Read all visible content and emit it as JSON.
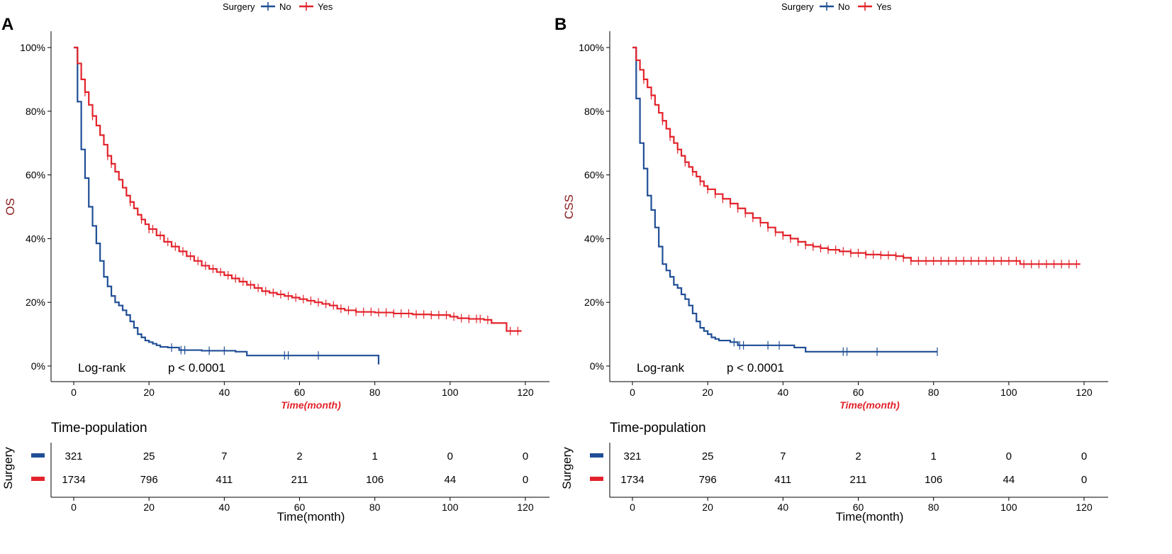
{
  "colors": {
    "no": "#1f4e96",
    "yes": "#e3232b",
    "ylabel": "#8b1a1a",
    "xlabel": "#e3232b",
    "axis": "#000000"
  },
  "chart_data": [
    {
      "type": "line",
      "panel_label": "A",
      "ylabel": "OS",
      "xlabel": "Time(month)",
      "legend": {
        "title": "Surgery",
        "entries": [
          "No",
          "Yes"
        ],
        "placement": "top"
      },
      "xlim": [
        0,
        120
      ],
      "ylim": [
        0,
        100
      ],
      "x_ticks": [
        "0",
        "20",
        "40",
        "60",
        "80",
        "100",
        "120"
      ],
      "y_ticks": [
        "0%",
        "20%",
        "40%",
        "60%",
        "80%",
        "100%"
      ],
      "annotation_label": "Log-rank",
      "annotation_p": "p < 0.0001",
      "series": [
        {
          "name": "No",
          "points": [
            [
              0,
              100
            ],
            [
              1,
              83
            ],
            [
              2,
              68
            ],
            [
              3,
              59
            ],
            [
              4,
              50
            ],
            [
              5,
              44
            ],
            [
              6,
              38.5
            ],
            [
              7,
              33
            ],
            [
              8,
              28
            ],
            [
              9,
              25
            ],
            [
              10,
              22
            ],
            [
              11,
              20
            ],
            [
              12,
              19
            ],
            [
              13,
              17.5
            ],
            [
              14,
              16
            ],
            [
              15,
              14
            ],
            [
              16,
              12
            ],
            [
              17,
              10
            ],
            [
              18,
              9
            ],
            [
              19,
              8
            ],
            [
              20,
              7.5
            ],
            [
              21,
              7
            ],
            [
              22,
              6.5
            ],
            [
              23,
              6
            ],
            [
              25,
              5.8
            ],
            [
              28,
              5
            ],
            [
              34,
              4.8
            ],
            [
              43,
              4.5
            ],
            [
              46,
              3.3
            ],
            [
              81,
              3.3
            ],
            [
              81,
              0.5
            ]
          ],
          "censor": [
            26,
            28.5,
            29.5,
            36,
            40,
            56,
            57,
            65
          ]
        },
        {
          "name": "Yes",
          "points": [
            [
              0,
              100
            ],
            [
              1,
              95
            ],
            [
              2,
              90
            ],
            [
              3,
              86
            ],
            [
              4,
              82
            ],
            [
              5,
              78.5
            ],
            [
              6,
              75.5
            ],
            [
              7,
              72.5
            ],
            [
              8,
              69.5
            ],
            [
              9,
              66
            ],
            [
              10,
              63.5
            ],
            [
              11,
              61
            ],
            [
              12,
              58.5
            ],
            [
              13,
              56
            ],
            [
              14,
              53.5
            ],
            [
              15,
              51.5
            ],
            [
              16,
              49.5
            ],
            [
              17,
              47.5
            ],
            [
              18,
              46
            ],
            [
              19,
              44.5
            ],
            [
              20,
              43
            ],
            [
              22,
              41
            ],
            [
              24,
              39
            ],
            [
              26,
              37.5
            ],
            [
              28,
              36
            ],
            [
              30,
              34.5
            ],
            [
              32,
              33
            ],
            [
              34,
              31.5
            ],
            [
              36,
              30.5
            ],
            [
              38,
              29.5
            ],
            [
              40,
              28.5
            ],
            [
              42,
              27.5
            ],
            [
              44,
              26.5
            ],
            [
              46,
              25.5
            ],
            [
              48,
              24.5
            ],
            [
              50,
              23.5
            ],
            [
              52,
              23
            ],
            [
              54,
              22.5
            ],
            [
              56,
              22
            ],
            [
              58,
              21.5
            ],
            [
              60,
              21
            ],
            [
              62,
              20.5
            ],
            [
              64,
              20
            ],
            [
              66,
              19.5
            ],
            [
              68,
              19
            ],
            [
              70,
              18
            ],
            [
              72,
              17.5
            ],
            [
              75,
              17
            ],
            [
              80,
              16.8
            ],
            [
              85,
              16.5
            ],
            [
              90,
              16.2
            ],
            [
              95,
              16
            ],
            [
              100,
              15.5
            ],
            [
              102,
              15
            ],
            [
              105,
              14.8
            ],
            [
              109,
              14.5
            ],
            [
              111,
              13.5
            ],
            [
              115,
              11
            ],
            [
              119,
              11
            ]
          ],
          "censor": [
            3,
            5,
            9,
            10,
            15,
            18,
            20,
            21,
            23,
            25,
            27,
            29,
            31,
            33,
            35,
            37,
            39,
            41,
            43,
            45,
            47,
            49,
            51,
            53,
            55,
            57,
            59,
            61,
            63,
            65,
            67,
            69,
            71,
            73,
            75,
            77,
            79,
            81,
            83,
            85,
            87,
            89,
            91,
            93,
            95,
            97,
            99,
            101,
            103,
            105,
            107,
            108,
            110,
            116,
            118
          ]
        }
      ],
      "risk_table": {
        "title": "Time-population",
        "ylabel": "Surgery",
        "x_ticks": [
          "0",
          "20",
          "40",
          "60",
          "80",
          "100",
          "120"
        ],
        "xlabel": "Time(month)",
        "rows": [
          {
            "group": "No",
            "values": [
              "321",
              "25",
              "7",
              "2",
              "1",
              "0",
              "0"
            ]
          },
          {
            "group": "Yes",
            "values": [
              "1734",
              "796",
              "411",
              "211",
              "106",
              "44",
              "0"
            ]
          }
        ]
      }
    },
    {
      "type": "line",
      "panel_label": "B",
      "ylabel": "CSS",
      "xlabel": "Time(month)",
      "legend": {
        "title": "Surgery",
        "entries": [
          "No",
          "Yes"
        ],
        "placement": "top"
      },
      "xlim": [
        0,
        120
      ],
      "ylim": [
        0,
        100
      ],
      "x_ticks": [
        "0",
        "20",
        "40",
        "60",
        "80",
        "100",
        "120"
      ],
      "y_ticks": [
        "0%",
        "20%",
        "40%",
        "60%",
        "80%",
        "100%"
      ],
      "annotation_label": "Log-rank",
      "annotation_p": "p < 0.0001",
      "series": [
        {
          "name": "No",
          "points": [
            [
              0,
              100
            ],
            [
              1,
              84
            ],
            [
              2,
              70
            ],
            [
              3,
              62
            ],
            [
              4,
              53.5
            ],
            [
              5,
              49
            ],
            [
              6,
              43.5
            ],
            [
              7,
              37.5
            ],
            [
              8,
              32
            ],
            [
              9,
              30
            ],
            [
              10,
              28
            ],
            [
              11,
              25.5
            ],
            [
              12,
              24.5
            ],
            [
              13,
              22.5
            ],
            [
              14,
              21
            ],
            [
              15,
              19
            ],
            [
              16,
              16.5
            ],
            [
              17,
              14
            ],
            [
              18,
              12
            ],
            [
              19,
              11
            ],
            [
              20,
              10
            ],
            [
              21,
              9
            ],
            [
              22,
              8.5
            ],
            [
              23,
              8
            ],
            [
              26,
              7.5
            ],
            [
              28,
              6.5
            ],
            [
              43,
              5.8
            ],
            [
              46,
              4.5
            ],
            [
              81,
              4.5
            ]
          ],
          "censor": [
            27,
            28.5,
            29.5,
            36,
            39,
            56,
            57,
            65,
            81
          ]
        },
        {
          "name": "Yes",
          "points": [
            [
              0,
              100
            ],
            [
              1,
              96
            ],
            [
              2,
              93
            ],
            [
              3,
              90
            ],
            [
              4,
              87.5
            ],
            [
              5,
              85
            ],
            [
              6,
              82
            ],
            [
              7,
              79.5
            ],
            [
              8,
              77
            ],
            [
              9,
              74.5
            ],
            [
              10,
              72
            ],
            [
              11,
              70
            ],
            [
              12,
              68
            ],
            [
              13,
              66
            ],
            [
              14,
              64
            ],
            [
              15,
              62.5
            ],
            [
              16,
              61
            ],
            [
              17,
              59.5
            ],
            [
              18,
              58
            ],
            [
              19,
              56.5
            ],
            [
              20,
              55.5
            ],
            [
              22,
              54
            ],
            [
              24,
              52.5
            ],
            [
              26,
              51
            ],
            [
              28,
              49.5
            ],
            [
              30,
              48
            ],
            [
              32,
              46.5
            ],
            [
              34,
              45
            ],
            [
              36,
              43.5
            ],
            [
              38,
              42
            ],
            [
              40,
              41
            ],
            [
              42,
              40
            ],
            [
              44,
              39
            ],
            [
              46,
              38
            ],
            [
              48,
              37.5
            ],
            [
              50,
              37
            ],
            [
              52,
              36.5
            ],
            [
              55,
              36
            ],
            [
              58,
              35.5
            ],
            [
              62,
              35
            ],
            [
              66,
              34.8
            ],
            [
              70,
              34.5
            ],
            [
              72,
              34
            ],
            [
              74,
              33
            ],
            [
              80,
              33
            ],
            [
              90,
              33
            ],
            [
              100,
              33
            ],
            [
              103,
              32
            ],
            [
              110,
              32
            ],
            [
              119,
              32
            ]
          ],
          "censor": [
            3,
            5,
            8,
            10,
            12,
            14,
            16,
            18,
            20,
            22,
            24,
            26,
            28,
            30,
            32,
            34,
            36,
            38,
            40,
            42,
            44,
            46,
            48,
            50,
            52,
            54,
            56,
            58,
            60,
            62,
            64,
            66,
            68,
            70,
            72,
            74,
            76,
            78,
            80,
            82,
            84,
            86,
            88,
            90,
            92,
            94,
            96,
            98,
            100,
            102,
            104,
            106,
            108,
            110,
            112,
            114,
            116,
            118
          ]
        }
      ],
      "risk_table": {
        "title": "Time-population",
        "ylabel": "Surgery",
        "x_ticks": [
          "0",
          "20",
          "40",
          "60",
          "80",
          "100",
          "120"
        ],
        "xlabel": "Time(month)",
        "rows": [
          {
            "group": "No",
            "values": [
              "321",
              "25",
              "7",
              "2",
              "1",
              "0",
              "0"
            ]
          },
          {
            "group": "Yes",
            "values": [
              "1734",
              "796",
              "411",
              "211",
              "106",
              "44",
              "0"
            ]
          }
        ]
      }
    }
  ]
}
